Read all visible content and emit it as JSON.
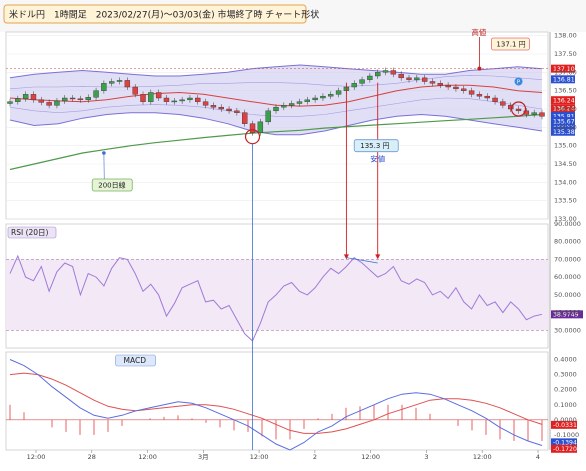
{
  "header": {
    "title": "米ドル円　1時間足　2023/02/27(月)〜03/03(金) 市場終了時 チャート形状"
  },
  "annotations": {
    "high_label": "高値",
    "high_value": "137.1 円",
    "low_label": "安値",
    "low_value": "135.3 円",
    "ma_label": "200日線",
    "p_marker": "P"
  },
  "panels": {
    "rsi_label": "RSI (20日)",
    "macd_label": "MACD"
  },
  "colors": {
    "up": "#3aa04a",
    "down": "#e04040",
    "band_fill": "#c8c4ec",
    "band_line": "#7a70d8",
    "mid_line": "#d84040",
    "ma200": "#4e9a4a",
    "rsi_line": "#a07ad8",
    "rsi_fill": "#f3e8f6",
    "macd_line": "#5a6ee0",
    "signal_line": "#e05050",
    "hist": "#e86060",
    "badge_red": "#e02020",
    "badge_blue": "#2a4fd0",
    "badge_purple": "#6a2a9a",
    "note_bg": "#fff3d8"
  },
  "chart_data": [
    {
      "type": "candlestick",
      "title": "米ドル円　1時間足　2023/02/27(月)〜03/03(金) 市場終了時 チャート形状",
      "ylim": [
        133.0,
        138.1
      ],
      "y_ticks": [
        "138.00",
        "137.50",
        "137.00",
        "136.50",
        "136.00",
        "135.50",
        "135.00",
        "134.50",
        "134.00",
        "133.50",
        "133.00"
      ],
      "x_ticks": [
        "12:00",
        "28",
        "12:00",
        "3月",
        "12:00",
        "2",
        "12:00",
        "3",
        "12:00",
        "4"
      ],
      "series": [
        {
          "name": "BB +2σ",
          "values": [
            136.85,
            136.95,
            137.0,
            137.05,
            137.0,
            136.95,
            136.9,
            136.9,
            136.95,
            137.0,
            137.1,
            137.15,
            137.2,
            137.15,
            137.1,
            137.05,
            137.0,
            136.95,
            136.95,
            137.05,
            137.1,
            137.15,
            137.1
          ]
        },
        {
          "name": "BB +1σ",
          "values": [
            136.55,
            136.6,
            136.6,
            136.62,
            136.6,
            136.6,
            136.62,
            136.65,
            136.7,
            136.7,
            136.72,
            136.72,
            136.7,
            136.65,
            136.62,
            136.65,
            136.7,
            136.8,
            136.88,
            136.92,
            136.9,
            136.85,
            136.8
          ]
        },
        {
          "name": "BB middle",
          "values": [
            136.3,
            136.25,
            136.22,
            136.2,
            136.25,
            136.35,
            136.42,
            136.45,
            136.4,
            136.3,
            136.2,
            136.1,
            136.08,
            136.1,
            136.2,
            136.35,
            136.5,
            136.6,
            136.65,
            136.65,
            136.6,
            136.5,
            136.45
          ]
        },
        {
          "name": "BB -1σ",
          "values": [
            136.05,
            135.95,
            135.9,
            135.95,
            136.05,
            136.1,
            136.12,
            136.1,
            136.05,
            135.95,
            135.85,
            135.8,
            135.8,
            135.85,
            135.95,
            136.05,
            136.15,
            136.25,
            136.3,
            136.28,
            136.2,
            136.1,
            136.0
          ]
        },
        {
          "name": "BB -2σ",
          "values": [
            135.7,
            135.55,
            135.6,
            135.75,
            135.85,
            135.9,
            135.9,
            135.85,
            135.75,
            135.6,
            135.4,
            135.3,
            135.3,
            135.4,
            135.55,
            135.7,
            135.8,
            135.85,
            135.8,
            135.7,
            135.6,
            135.5,
            135.4
          ]
        },
        {
          "name": "200日線",
          "values": [
            134.35,
            134.5,
            134.65,
            134.8,
            134.9,
            135.0,
            135.08,
            135.15,
            135.22,
            135.28,
            135.34,
            135.38,
            135.42,
            135.48,
            135.52,
            135.56,
            135.6,
            135.64,
            135.68,
            135.72,
            135.76,
            135.8,
            135.85
          ]
        },
        {
          "name": "close",
          "values": [
            136.2,
            136.28,
            136.4,
            136.25,
            136.18,
            136.1,
            136.22,
            136.3,
            136.28,
            136.25,
            136.32,
            136.5,
            136.7,
            136.75,
            136.78,
            136.6,
            136.4,
            136.2,
            136.45,
            136.3,
            136.2,
            136.22,
            136.25,
            136.3,
            136.2,
            136.1,
            136.05,
            136.0,
            135.95,
            135.9,
            135.6,
            135.35,
            135.65,
            135.95,
            136.05,
            136.1,
            136.15,
            136.2,
            136.25,
            136.3,
            136.35,
            136.4,
            136.5,
            136.6,
            136.7,
            136.8,
            136.9,
            137.0,
            137.05,
            136.95,
            136.85,
            136.8,
            136.85,
            136.75,
            136.7,
            136.65,
            136.6,
            136.55,
            136.5,
            136.4,
            136.35,
            136.3,
            136.2,
            136.1,
            136.0,
            135.95,
            135.85,
            135.9,
            135.8
          ]
        }
      ],
      "markers": {
        "high": 137.1,
        "low": 135.3
      },
      "right_axis_badges": [
        "137.10",
        "136.81",
        "136.24",
        "136.24",
        "135.81",
        "135.80",
        "135.67",
        "135.38"
      ]
    },
    {
      "type": "line",
      "title": "RSI (20日)",
      "ylim": [
        20,
        90
      ],
      "y_ticks": [
        "90.0000",
        "80.0000",
        "70.0000",
        "60.0000",
        "50.0000",
        "40.0000",
        "30.0000"
      ],
      "current_label": "38.9749",
      "levels": [
        70,
        30
      ],
      "series": [
        {
          "name": "RSI (20日)",
          "values": [
            62,
            72,
            60,
            58,
            66,
            52,
            63,
            68,
            66,
            50,
            62,
            60,
            55,
            65,
            71,
            70,
            62,
            52,
            56,
            50,
            38,
            45,
            54,
            56,
            58,
            46,
            47,
            42,
            44,
            36,
            28,
            24,
            34,
            46,
            50,
            55,
            57,
            52,
            50,
            54,
            60,
            65,
            62,
            66,
            71,
            68,
            64,
            60,
            62,
            66,
            58,
            56,
            59,
            57,
            50,
            52,
            48,
            54,
            46,
            42,
            50,
            44,
            46,
            40,
            46,
            42,
            36,
            38,
            39
          ]
        }
      ]
    },
    {
      "type": "line",
      "title": "MACD",
      "ylim": [
        -0.2,
        0.45
      ],
      "y_ticks": [
        "0.4000",
        "0.3000",
        "0.2000",
        "0.1000",
        "0.0000",
        "-0.1000"
      ],
      "current_labels": [
        "-0.0331",
        "-0.1394",
        "-0.1720"
      ],
      "series": [
        {
          "name": "MACD",
          "values": [
            0.4,
            0.36,
            0.3,
            0.22,
            0.15,
            0.08,
            0.03,
            0.01,
            0.03,
            0.06,
            0.08,
            0.1,
            0.12,
            0.11,
            0.08,
            0.04,
            0.0,
            -0.04,
            -0.1,
            -0.16,
            -0.2,
            -0.15,
            -0.08,
            -0.04,
            0.02,
            0.06,
            0.1,
            0.14,
            0.17,
            0.18,
            0.17,
            0.14,
            0.1,
            0.06,
            0.01,
            -0.05,
            -0.1,
            -0.14,
            -0.17
          ]
        },
        {
          "name": "Signal",
          "values": [
            0.3,
            0.31,
            0.3,
            0.27,
            0.23,
            0.18,
            0.13,
            0.09,
            0.07,
            0.06,
            0.07,
            0.08,
            0.09,
            0.1,
            0.1,
            0.09,
            0.07,
            0.04,
            0.01,
            -0.03,
            -0.07,
            -0.09,
            -0.09,
            -0.08,
            -0.06,
            -0.03,
            0.0,
            0.04,
            0.07,
            0.1,
            0.13,
            0.14,
            0.14,
            0.13,
            0.11,
            0.08,
            0.04,
            0.0,
            -0.03
          ]
        },
        {
          "name": "Histogram",
          "values": [
            0.1,
            0.05,
            0.0,
            -0.05,
            -0.08,
            -0.1,
            -0.1,
            -0.08,
            -0.04,
            0.0,
            0.01,
            0.02,
            0.03,
            0.01,
            -0.02,
            -0.05,
            -0.07,
            -0.08,
            -0.11,
            -0.13,
            -0.13,
            -0.06,
            0.01,
            0.04,
            0.08,
            0.09,
            0.1,
            0.1,
            0.1,
            0.08,
            0.04,
            0.0,
            -0.04,
            -0.07,
            -0.1,
            -0.13,
            -0.14,
            -0.14,
            -0.14
          ]
        }
      ]
    }
  ]
}
